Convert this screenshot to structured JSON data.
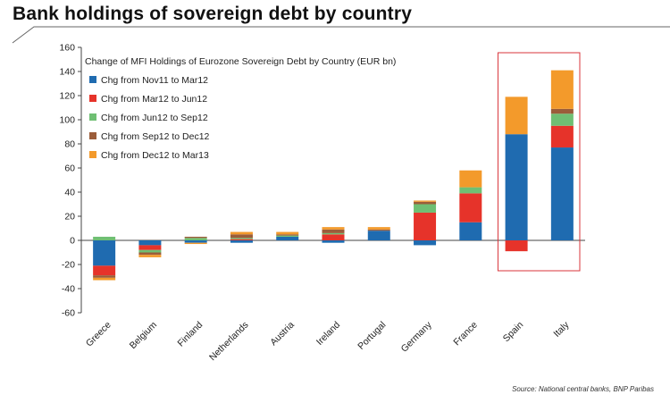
{
  "page": {
    "title": "Bank holdings of sovereign debt by country",
    "source": "Source: National central banks, BNP Paribas"
  },
  "chart_data": {
    "type": "bar",
    "stacked": true,
    "title": "Change of MFI Holdings of Eurozone Sovereign Debt by Country  (EUR bn)",
    "xlabel": "",
    "ylabel": "",
    "ylim": [
      -60,
      160
    ],
    "yticks": [
      -60,
      -40,
      -20,
      0,
      20,
      40,
      60,
      80,
      100,
      120,
      140,
      160
    ],
    "grid": false,
    "legend_position": "top-left",
    "highlight_box": [
      "Spain",
      "Italy"
    ],
    "highlight_color": "#d9353b",
    "categories": [
      "Greece",
      "Belgium",
      "Finland",
      "Netherlands",
      "Austria",
      "Ireland",
      "Portugal",
      "Germany",
      "France",
      "Spain",
      "Italy"
    ],
    "series": [
      {
        "name": "Chg from Nov11 to Mar12",
        "color": "#1f6bb0",
        "values": [
          -21,
          -4,
          -2,
          -2,
          3,
          -2,
          8,
          -4,
          15,
          88,
          77
        ]
      },
      {
        "name": "Chg from Mar12 to Jun12",
        "color": "#e6332a",
        "values": [
          -8,
          -4,
          0,
          1,
          0,
          5,
          0,
          23,
          24,
          -9,
          18
        ]
      },
      {
        "name": "Chg from Jun12 to Sep12",
        "color": "#6fbf73",
        "values": [
          3,
          -2,
          2,
          1,
          1,
          1,
          0,
          7,
          5,
          0,
          10
        ]
      },
      {
        "name": "Chg from Sep12 to Dec12",
        "color": "#9b5d3a",
        "values": [
          -2,
          -2,
          1,
          3,
          1,
          3,
          1,
          2,
          0,
          0,
          4
        ]
      },
      {
        "name": "Chg from Dec12 to Mar13",
        "color": "#f39a2b",
        "values": [
          -2,
          -2,
          -1,
          2,
          2,
          2,
          2,
          1,
          14,
          31,
          32
        ]
      }
    ]
  }
}
